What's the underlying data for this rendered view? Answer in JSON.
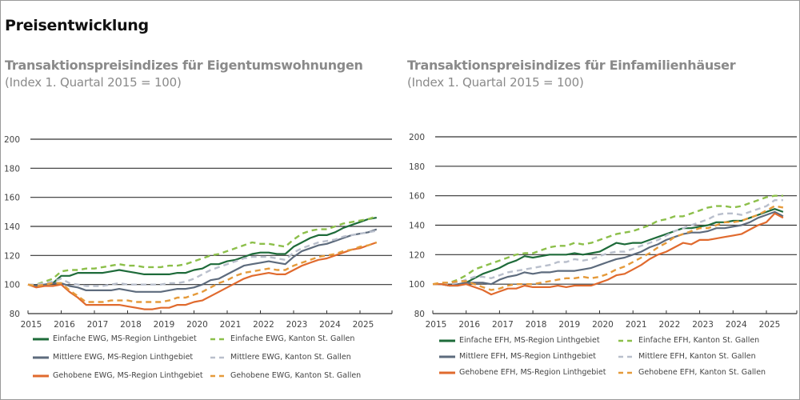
{
  "page_title": "Preisentwicklung",
  "chart_data": [
    {
      "type": "line",
      "title": "Transaktionspreisindizes für Eigentumswohnungen",
      "subtitle": "(Index 1. Quartal 2015 = 100)",
      "xlabel": "",
      "ylabel": "",
      "xlim": [
        2015,
        2025.95
      ],
      "ylim": [
        80,
        200
      ],
      "y_ticks": [
        80,
        100,
        120,
        140,
        160,
        180,
        200
      ],
      "x_ticks": [
        "2015",
        "2016",
        "2017",
        "2018",
        "2019",
        "2020",
        "2021",
        "2022",
        "2023",
        "2024",
        "2025"
      ],
      "grid": true,
      "legend_position": "bottom",
      "x_start": 2015.0,
      "x_step": 0.25,
      "series": [
        {
          "name": "Einfache EWG, MS-Region Linthgebiet",
          "color": "#1e6b3a",
          "dashed": false,
          "values": [
            100,
            99,
            100,
            101,
            106,
            106,
            108,
            108,
            108,
            108,
            109,
            110,
            109,
            108,
            107,
            107,
            107,
            107,
            108,
            108,
            110,
            111,
            114,
            114,
            116,
            117,
            119,
            121,
            122,
            122,
            121,
            121,
            126,
            129,
            132,
            134,
            134,
            136,
            139,
            141,
            143,
            145,
            146
          ]
        },
        {
          "name": "Einfache EWG, Kanton St. Gallen",
          "color": "#8cbf4a",
          "dashed": true,
          "values": [
            100,
            100,
            102,
            104,
            109,
            110,
            110,
            111,
            111,
            112,
            113,
            114,
            113,
            113,
            112,
            112,
            112,
            113,
            113,
            114,
            116,
            118,
            120,
            121,
            123,
            125,
            127,
            129,
            128,
            128,
            127,
            126,
            131,
            135,
            137,
            138,
            138,
            140,
            142,
            143,
            144,
            145,
            147
          ]
        },
        {
          "name": "Mittlere EWG, MS-Region Linthgebiet",
          "color": "#5d6b7d",
          "dashed": false,
          "values": [
            100,
            99,
            100,
            101,
            101,
            99,
            98,
            96,
            96,
            96,
            96,
            97,
            96,
            95,
            95,
            95,
            95,
            96,
            97,
            97,
            98,
            100,
            103,
            104,
            107,
            110,
            113,
            114,
            115,
            116,
            115,
            114,
            119,
            123,
            125,
            127,
            128,
            130,
            132,
            134,
            135,
            136,
            138
          ]
        },
        {
          "name": "Mittlere EWG, Kanton St. Gallen",
          "color": "#b9bfcc",
          "dashed": true,
          "values": [
            100,
            100,
            101,
            102,
            104,
            101,
            100,
            99,
            99,
            99,
            100,
            101,
            100,
            100,
            100,
            100,
            100,
            101,
            101,
            102,
            104,
            107,
            110,
            112,
            114,
            116,
            118,
            119,
            119,
            119,
            118,
            117,
            122,
            125,
            127,
            129,
            130,
            131,
            133,
            134,
            135,
            136,
            137
          ]
        },
        {
          "name": "Gehobene EWG, MS-Region Linthgebiet",
          "color": "#e06a2e",
          "dashed": false,
          "values": [
            100,
            98,
            99,
            99,
            100,
            95,
            91,
            86,
            86,
            86,
            86,
            86,
            85,
            84,
            83,
            83,
            84,
            84,
            86,
            86,
            88,
            89,
            92,
            95,
            98,
            101,
            104,
            106,
            107,
            108,
            107,
            107,
            110,
            113,
            115,
            117,
            118,
            120,
            122,
            124,
            125,
            127,
            129
          ]
        },
        {
          "name": "Gehobene EWG, Kanton St. Gallen",
          "color": "#e59a3a",
          "dashed": true,
          "values": [
            100,
            99,
            100,
            101,
            101,
            96,
            92,
            88,
            88,
            88,
            89,
            89,
            89,
            88,
            88,
            88,
            88,
            89,
            91,
            91,
            93,
            95,
            98,
            101,
            103,
            106,
            108,
            109,
            110,
            111,
            110,
            110,
            113,
            115,
            117,
            119,
            120,
            121,
            123,
            124,
            126,
            127,
            129
          ]
        }
      ]
    },
    {
      "type": "line",
      "title": "Transaktionspreisindizes für Einfamilienhäuser",
      "subtitle": "(Index 1. Quartal 2015 = 100)",
      "xlabel": "",
      "ylabel": "",
      "xlim": [
        2015,
        2025.95
      ],
      "ylim": [
        80,
        200
      ],
      "y_ticks": [
        80,
        100,
        120,
        140,
        160,
        180,
        200
      ],
      "x_ticks": [
        "2015",
        "2016",
        "2017",
        "2018",
        "2019",
        "2020",
        "2021",
        "2022",
        "2023",
        "2024",
        "2025"
      ],
      "grid": true,
      "legend_position": "bottom",
      "x_start": 2015.0,
      "x_step": 0.25,
      "series": [
        {
          "name": "Einfache EFH, MS-Region Linthgebiet",
          "color": "#1e6b3a",
          "dashed": false,
          "values": [
            100,
            100,
            99,
            99,
            101,
            104,
            107,
            109,
            111,
            114,
            116,
            119,
            118,
            119,
            120,
            120,
            120,
            121,
            120,
            121,
            122,
            125,
            128,
            127,
            128,
            128,
            130,
            132,
            134,
            136,
            138,
            138,
            139,
            140,
            142,
            142,
            143,
            143,
            145,
            147,
            149,
            151,
            149
          ]
        },
        {
          "name": "Einfache EFH, Kanton St. Gallen",
          "color": "#8cbf4a",
          "dashed": true,
          "values": [
            100,
            100,
            101,
            103,
            106,
            110,
            112,
            114,
            116,
            118,
            120,
            121,
            121,
            123,
            125,
            126,
            126,
            128,
            127,
            128,
            130,
            132,
            134,
            135,
            136,
            138,
            140,
            143,
            144,
            146,
            146,
            148,
            150,
            152,
            153,
            153,
            152,
            153,
            155,
            157,
            159,
            160,
            160
          ]
        },
        {
          "name": "Mittlere EFH, MS-Region Linthgebiet",
          "color": "#5d6b7d",
          "dashed": false,
          "values": [
            100,
            100,
            99,
            100,
            101,
            101,
            101,
            100,
            103,
            105,
            106,
            108,
            107,
            108,
            108,
            109,
            109,
            109,
            110,
            111,
            113,
            115,
            117,
            118,
            120,
            122,
            125,
            127,
            130,
            132,
            134,
            135,
            135,
            136,
            138,
            138,
            139,
            140,
            142,
            145,
            147,
            149,
            146
          ]
        },
        {
          "name": "Mittlere EFH, Kanton St. Gallen",
          "color": "#b9bfcc",
          "dashed": true,
          "values": [
            100,
            100,
            100,
            101,
            103,
            105,
            105,
            104,
            106,
            108,
            109,
            110,
            111,
            112,
            113,
            115,
            115,
            117,
            116,
            117,
            119,
            121,
            122,
            122,
            124,
            126,
            128,
            130,
            133,
            136,
            138,
            140,
            142,
            144,
            147,
            148,
            148,
            147,
            149,
            151,
            153,
            157,
            157
          ]
        },
        {
          "name": "Gehobene EFH, MS-Region Linthgebiet",
          "color": "#e06a2e",
          "dashed": false,
          "values": [
            100,
            100,
            99,
            99,
            100,
            98,
            96,
            93,
            95,
            97,
            97,
            99,
            98,
            98,
            98,
            99,
            98,
            99,
            99,
            99,
            101,
            103,
            106,
            107,
            110,
            113,
            117,
            120,
            122,
            125,
            128,
            127,
            130,
            130,
            131,
            132,
            133,
            134,
            137,
            140,
            142,
            148,
            145
          ]
        },
        {
          "name": "Gehobene EFH, Kanton St. Gallen",
          "color": "#e59a3a",
          "dashed": true,
          "values": [
            100,
            101,
            101,
            102,
            102,
            100,
            98,
            96,
            97,
            99,
            100,
            100,
            100,
            101,
            102,
            103,
            104,
            104,
            105,
            104,
            105,
            107,
            110,
            112,
            115,
            118,
            121,
            125,
            128,
            132,
            134,
            136,
            138,
            138,
            140,
            142,
            142,
            143,
            145,
            147,
            150,
            153,
            152
          ]
        }
      ]
    }
  ]
}
